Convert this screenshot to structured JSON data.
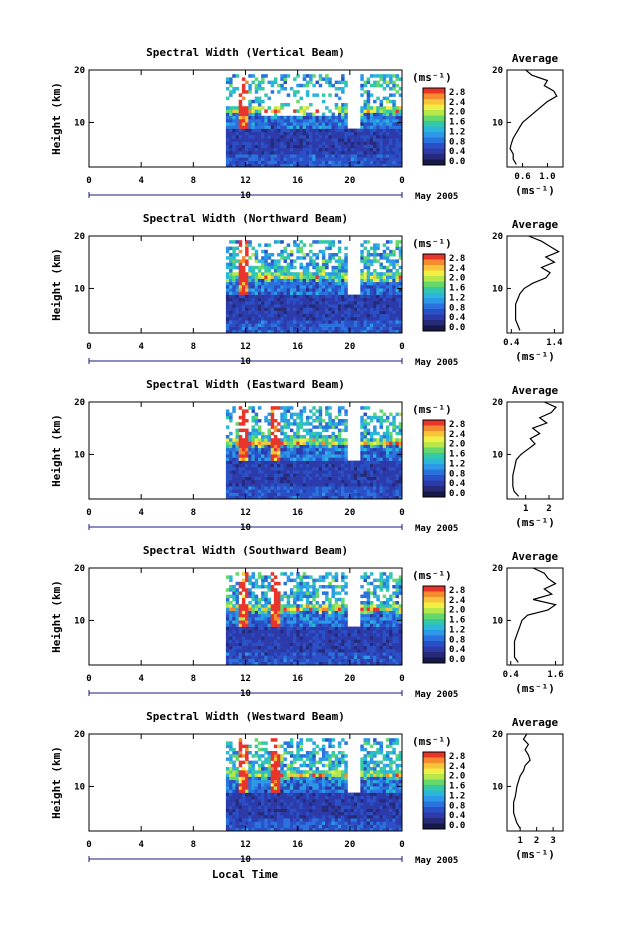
{
  "page": {
    "x_axis_label": "Local Time"
  },
  "colorbar": {
    "unit": "(ms⁻¹)",
    "ticks": [
      "2.8",
      "2.4",
      "2.0",
      "1.6",
      "1.2",
      "0.8",
      "0.4",
      "0.0"
    ],
    "colors": [
      "#e8342a",
      "#f58b2c",
      "#f7c43a",
      "#f2ee44",
      "#b6e84b",
      "#64d86a",
      "#34c9a6",
      "#2bb8d8",
      "#2b98e8",
      "#2a72de",
      "#2a50c8",
      "#2d3aaa",
      "#262a78",
      "#151848"
    ]
  },
  "chart_data": [
    {
      "type": "heatmap",
      "title": "Spectral Width (Vertical Beam)",
      "ylabel": "Height (km)",
      "xlabel": "Local Time",
      "x_ticks": [
        "0",
        "4",
        "8",
        "12",
        "16",
        "20",
        "0"
      ],
      "y_ticks": [
        "20",
        "10"
      ],
      "date_label": "May 2005",
      "day_label": "10",
      "xlim": [
        0,
        24
      ],
      "ylim": [
        1.5,
        20
      ],
      "data_start_hour": 10.5,
      "colorbar_range": [
        0.0,
        2.8
      ],
      "average_profile": {
        "title": "Average",
        "xlabel": "(ms⁻¹)",
        "x_ticks": [
          "0.6",
          "1.0"
        ],
        "x_tick_values": [
          0.6,
          1.0
        ],
        "xlim": [
          0.35,
          1.25
        ],
        "y_ticks": [
          "20",
          "10"
        ],
        "height": [
          2,
          3,
          4,
          5,
          6,
          7,
          8,
          9,
          10,
          11,
          12,
          13,
          14,
          15,
          16,
          17,
          18,
          19,
          20
        ],
        "value": [
          0.5,
          0.45,
          0.45,
          0.4,
          0.42,
          0.45,
          0.5,
          0.55,
          0.6,
          0.7,
          0.8,
          0.9,
          1.0,
          1.15,
          1.1,
          0.95,
          1.0,
          0.75,
          0.65
        ]
      }
    },
    {
      "type": "heatmap",
      "title": "Spectral Width (Northward Beam)",
      "ylabel": "Height (km)",
      "xlabel": "Local Time",
      "x_ticks": [
        "0",
        "4",
        "8",
        "12",
        "16",
        "20",
        "0"
      ],
      "y_ticks": [
        "20",
        "10"
      ],
      "date_label": "May 2005",
      "day_label": "10",
      "xlim": [
        0,
        24
      ],
      "ylim": [
        1.5,
        20
      ],
      "data_start_hour": 10.5,
      "colorbar_range": [
        0.0,
        2.8
      ],
      "average_profile": {
        "title": "Average",
        "xlabel": "(ms⁻¹)",
        "x_ticks": [
          "0.4",
          "1.4"
        ],
        "x_tick_values": [
          0.4,
          1.4
        ],
        "xlim": [
          0.3,
          1.6
        ],
        "y_ticks": [
          "20",
          "10"
        ],
        "height": [
          2,
          3,
          4,
          5,
          6,
          7,
          8,
          9,
          10,
          11,
          12,
          13,
          14,
          15,
          16,
          17,
          18,
          19,
          20
        ],
        "value": [
          0.6,
          0.55,
          0.5,
          0.5,
          0.5,
          0.5,
          0.55,
          0.6,
          0.7,
          0.9,
          1.2,
          1.3,
          1.1,
          1.4,
          1.2,
          1.5,
          1.3,
          1.1,
          0.8
        ]
      }
    },
    {
      "type": "heatmap",
      "title": "Spectral Width (Eastward Beam)",
      "ylabel": "Height (km)",
      "xlabel": "Local Time",
      "x_ticks": [
        "0",
        "4",
        "8",
        "12",
        "16",
        "20",
        "0"
      ],
      "y_ticks": [
        "20",
        "10"
      ],
      "date_label": "May 2005",
      "day_label": "10",
      "xlim": [
        0,
        24
      ],
      "ylim": [
        1.5,
        20
      ],
      "data_start_hour": 10.5,
      "colorbar_range": [
        0.0,
        2.8
      ],
      "average_profile": {
        "title": "Average",
        "xlabel": "(ms⁻¹)",
        "x_ticks": [
          "1",
          "2"
        ],
        "x_tick_values": [
          1,
          2
        ],
        "xlim": [
          0.2,
          2.6
        ],
        "y_ticks": [
          "20",
          "10"
        ],
        "height": [
          2,
          3,
          4,
          5,
          6,
          7,
          8,
          9,
          10,
          11,
          12,
          13,
          14,
          15,
          16,
          17,
          18,
          19,
          20
        ],
        "value": [
          0.7,
          0.5,
          0.45,
          0.45,
          0.45,
          0.5,
          0.55,
          0.6,
          0.8,
          1.1,
          1.4,
          1.2,
          1.6,
          1.3,
          1.9,
          1.6,
          2.1,
          2.3,
          1.8
        ]
      }
    },
    {
      "type": "heatmap",
      "title": "Spectral Width (Southward Beam)",
      "ylabel": "Height (km)",
      "xlabel": "Local Time",
      "x_ticks": [
        "0",
        "4",
        "8",
        "12",
        "16",
        "20",
        "0"
      ],
      "y_ticks": [
        "20",
        "10"
      ],
      "date_label": "May 2005",
      "day_label": "10",
      "xlim": [
        0,
        24
      ],
      "ylim": [
        1.5,
        20
      ],
      "data_start_hour": 10.5,
      "colorbar_range": [
        0.0,
        2.8
      ],
      "average_profile": {
        "title": "Average",
        "xlabel": "(ms⁻¹)",
        "x_ticks": [
          "0.4",
          "1.6"
        ],
        "x_tick_values": [
          0.4,
          1.6
        ],
        "xlim": [
          0.3,
          1.8
        ],
        "y_ticks": [
          "20",
          "10"
        ],
        "height": [
          2,
          3,
          4,
          5,
          6,
          7,
          8,
          9,
          10,
          11,
          12,
          13,
          14,
          15,
          16,
          17,
          18,
          19,
          20
        ],
        "value": [
          0.6,
          0.5,
          0.5,
          0.5,
          0.5,
          0.55,
          0.6,
          0.65,
          0.7,
          0.85,
          1.4,
          1.6,
          1.0,
          1.5,
          1.3,
          1.6,
          1.4,
          1.3,
          1.0
        ]
      }
    },
    {
      "type": "heatmap",
      "title": "Spectral Width (Westward Beam)",
      "ylabel": "Height (km)",
      "xlabel": "Local Time",
      "x_ticks": [
        "0",
        "4",
        "8",
        "12",
        "16",
        "20",
        "0"
      ],
      "y_ticks": [
        "20",
        "10"
      ],
      "date_label": "May 2005",
      "day_label": "10",
      "xlim": [
        0,
        24
      ],
      "ylim": [
        1.5,
        20
      ],
      "data_start_hour": 10.5,
      "colorbar_range": [
        0.0,
        2.8
      ],
      "average_profile": {
        "title": "Average",
        "xlabel": "(ms⁻¹)",
        "x_ticks": [
          "1",
          "2",
          "3"
        ],
        "x_tick_values": [
          1,
          2,
          3
        ],
        "xlim": [
          0.2,
          3.6
        ],
        "y_ticks": [
          "20",
          "10"
        ],
        "height": [
          2,
          3,
          4,
          5,
          6,
          7,
          8,
          9,
          10,
          11,
          12,
          13,
          14,
          15,
          16,
          17,
          18,
          19,
          20
        ],
        "value": [
          1.0,
          0.8,
          0.7,
          0.6,
          0.6,
          0.6,
          0.7,
          0.75,
          0.8,
          0.9,
          1.0,
          1.2,
          1.3,
          1.6,
          1.5,
          1.3,
          1.5,
          1.2,
          1.4
        ]
      }
    }
  ]
}
